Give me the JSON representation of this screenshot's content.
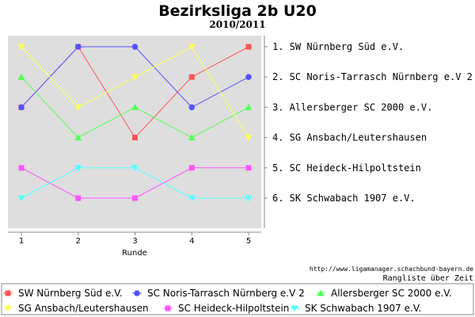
{
  "chart_data": {
    "type": "line",
    "title": "Bezirksliga 2b U20",
    "subtitle": "2010/2011",
    "xlabel": "Runde",
    "ylabel": "",
    "x": [
      1,
      2,
      3,
      4,
      5
    ],
    "ylim": [
      1,
      6
    ],
    "y_inverted": true,
    "grid": false,
    "legend_position": "bottom",
    "series": [
      {
        "name": "SW Nürnberg Süd e.V.",
        "color": "#ff5555",
        "marker": "square",
        "values": [
          3,
          1,
          4,
          2,
          1
        ]
      },
      {
        "name": "SC Noris-Tarrasch Nürnberg e.V 2",
        "color": "#5555ff",
        "marker": "circle",
        "values": [
          3,
          1,
          1,
          3,
          2
        ]
      },
      {
        "name": "Allersberger SC 2000 e.V.",
        "color": "#55ff55",
        "marker": "triangle-up",
        "values": [
          2,
          4,
          3,
          4,
          3
        ]
      },
      {
        "name": "SG Ansbach/Leutershausen",
        "color": "#ffff55",
        "marker": "triangle-down",
        "values": [
          1,
          3,
          2,
          1,
          4
        ]
      },
      {
        "name": "SC Heideck-Hilpoltstein",
        "color": "#ff55ff",
        "marker": "square",
        "values": [
          5,
          6,
          6,
          5,
          5
        ]
      },
      {
        "name": "SK Schwabach 1907 e.V.",
        "color": "#55ffff",
        "marker": "triangle-down",
        "values": [
          6,
          5,
          5,
          6,
          6
        ]
      }
    ],
    "rank_labels": [
      "1. SW Nürnberg Süd e.V.",
      "2. SC Noris-Tarrasch Nürnberg e.V 2",
      "3. Allersberger SC 2000 e.V.",
      "4. SG Ansbach/Leutershausen",
      "5. SC Heideck-Hilpoltstein",
      "6. SK Schwabach 1907 e.V."
    ],
    "source": "http://www.ligamanager.schachbund-bayern.de",
    "caption": "Rangliste über Zeit"
  }
}
